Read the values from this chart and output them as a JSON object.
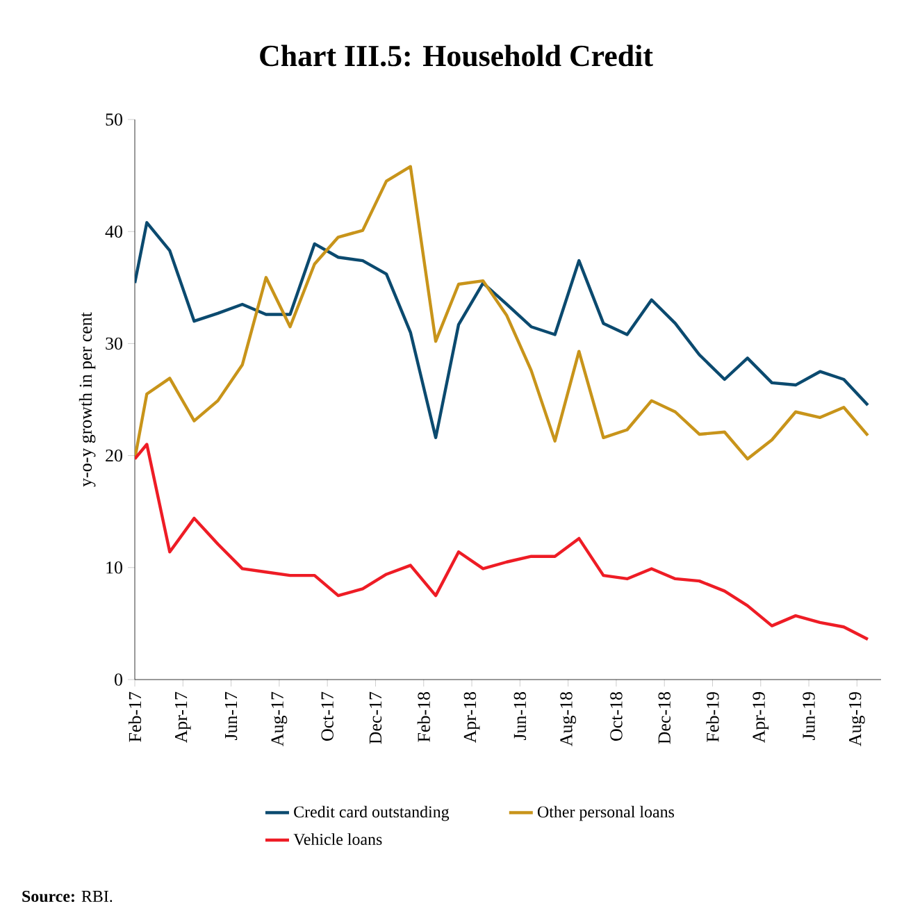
{
  "chart_data": {
    "type": "line",
    "title": "Chart III.5: Household Credit",
    "ylabel": "y-o-y growth in per cent",
    "x": [
      "2017-02-01",
      "2017-02-15",
      "2017-03-15",
      "2017-04-15",
      "2017-05-15",
      "2017-06-15",
      "2017-07-15",
      "2017-08-15",
      "2017-09-15",
      "2017-10-15",
      "2017-11-15",
      "2017-12-15",
      "2018-01-15",
      "2018-02-15",
      "2018-03-15",
      "2018-04-15",
      "2018-05-15",
      "2018-06-15",
      "2018-07-15",
      "2018-08-15",
      "2018-09-15",
      "2018-10-15",
      "2018-11-15",
      "2018-12-15",
      "2019-01-15",
      "2019-02-15",
      "2019-03-15",
      "2019-04-15",
      "2019-05-15",
      "2019-06-15",
      "2019-07-15",
      "2019-08-15"
    ],
    "series": [
      {
        "name": "Credit card outstanding",
        "color": "#0b4a6f",
        "values": [
          35.4,
          40.8,
          38.3,
          32.0,
          32.7,
          33.5,
          32.6,
          32.6,
          38.9,
          37.7,
          37.4,
          36.2,
          31.0,
          21.6,
          31.7,
          35.4,
          33.5,
          31.5,
          30.8,
          37.4,
          31.8,
          30.8,
          33.9,
          31.8,
          29.0,
          26.8,
          28.7,
          26.5,
          26.3,
          27.5,
          26.8,
          24.5
        ]
      },
      {
        "name": "Other personal loans",
        "color": "#c8941a",
        "values": [
          19.7,
          25.5,
          26.9,
          23.1,
          24.9,
          28.1,
          35.9,
          31.5,
          37.1,
          39.5,
          40.1,
          44.5,
          45.8,
          30.2,
          35.3,
          35.6,
          32.5,
          27.6,
          21.3,
          29.3,
          21.6,
          22.3,
          24.9,
          23.9,
          21.9,
          22.1,
          19.7,
          21.4,
          23.9,
          23.4,
          24.3,
          21.8
        ]
      },
      {
        "name": "Vehicle loans",
        "color": "#ee1c25",
        "values": [
          19.7,
          21.0,
          11.4,
          14.4,
          12.1,
          9.9,
          9.6,
          9.3,
          9.3,
          7.5,
          8.1,
          9.4,
          10.2,
          7.5,
          11.4,
          9.9,
          10.5,
          11.0,
          11.0,
          12.6,
          9.3,
          9.0,
          9.9,
          9.0,
          8.8,
          7.9,
          6.6,
          4.8,
          5.7,
          5.1,
          4.7,
          3.6
        ]
      }
    ],
    "xlim": [
      "2017-02-01",
      "2019-09-01"
    ],
    "xticks": [
      {
        "value": "2017-02",
        "label": "Feb-17"
      },
      {
        "value": "2017-04",
        "label": "Apr-17"
      },
      {
        "value": "2017-06",
        "label": "Jun-17"
      },
      {
        "value": "2017-08",
        "label": "Aug-17"
      },
      {
        "value": "2017-10",
        "label": "Oct-17"
      },
      {
        "value": "2017-12",
        "label": "Dec-17"
      },
      {
        "value": "2018-02",
        "label": "Feb-18"
      },
      {
        "value": "2018-04",
        "label": "Apr-18"
      },
      {
        "value": "2018-06",
        "label": "Jun-18"
      },
      {
        "value": "2018-08",
        "label": "Aug-18"
      },
      {
        "value": "2018-10",
        "label": "Oct-18"
      },
      {
        "value": "2018-12",
        "label": "Dec-18"
      },
      {
        "value": "2019-02",
        "label": "Feb-19"
      },
      {
        "value": "2019-04",
        "label": "Apr-19"
      },
      {
        "value": "2019-06",
        "label": "Jun-19"
      },
      {
        "value": "2019-08",
        "label": "Aug-19"
      }
    ],
    "ylim": [
      0,
      50
    ],
    "yticks": [
      0,
      10,
      20,
      30,
      40,
      50
    ],
    "legend": "bottom",
    "grid": false,
    "annotations": [
      "**Source:** RBI."
    ]
  }
}
